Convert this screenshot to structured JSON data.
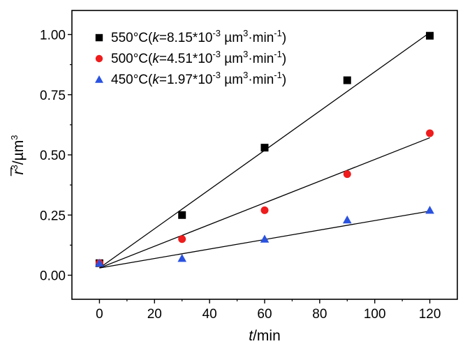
{
  "chart_data": {
    "type": "scatter",
    "xlabel_var": "t",
    "xlabel_unit": "/min",
    "ylabel_var": "r̅",
    "ylabel_exp": "3",
    "ylabel_unit": "/µm",
    "ylabel_unit_exp": "3",
    "xlim": [
      -10,
      130
    ],
    "ylim": [
      -0.1,
      1.1
    ],
    "xticks": [
      0,
      20,
      40,
      60,
      80,
      100,
      120
    ],
    "xtick_labels": [
      "0",
      "20",
      "40",
      "60",
      "80",
      "100",
      "120"
    ],
    "yticks": [
      0.0,
      0.25,
      0.5,
      0.75,
      1.0
    ],
    "ytick_labels": [
      "0.00",
      "0.25",
      "0.50",
      "0.75",
      "1.00"
    ],
    "legend_position": "top-left",
    "grid": false,
    "series": [
      {
        "key": "s550",
        "legend_temp": "550°C(",
        "legend_k": "k",
        "legend_rest": "=8.15*10",
        "legend_exp": "-3",
        "legend_unit": " µm",
        "legend_unit_exp": "3",
        "legend_min": "·min",
        "legend_min_exp": "-1",
        "legend_close": ")",
        "marker": "square",
        "color": "#000000",
        "x": [
          0,
          30,
          60,
          90,
          120
        ],
        "y": [
          0.05,
          0.25,
          0.53,
          0.81,
          0.995
        ],
        "fit": {
          "intercept": 0.03,
          "slope": 0.00815
        }
      },
      {
        "key": "s500",
        "legend_temp": "500°C(",
        "legend_k": "k",
        "legend_rest": "=4.51*10",
        "legend_exp": "-3",
        "legend_unit": " µm",
        "legend_unit_exp": "3",
        "legend_min": "·min",
        "legend_min_exp": "-1",
        "legend_close": ")",
        "marker": "circle",
        "color": "#ee1c1c",
        "x": [
          0,
          30,
          60,
          90,
          120
        ],
        "y": [
          0.05,
          0.15,
          0.27,
          0.42,
          0.59
        ],
        "fit": {
          "intercept": 0.03,
          "slope": 0.00451
        }
      },
      {
        "key": "s450",
        "legend_temp": "450°C(",
        "legend_k": "k",
        "legend_rest": "=1.97*10",
        "legend_exp": "-3",
        "legend_unit": " µm",
        "legend_unit_exp": "3",
        "legend_min": "·min",
        "legend_min_exp": "-1",
        "legend_close": ")",
        "marker": "triangle",
        "color": "#2a52e0",
        "x": [
          0,
          30,
          60,
          90,
          120
        ],
        "y": [
          0.05,
          0.07,
          0.15,
          0.23,
          0.27
        ],
        "fit": {
          "intercept": 0.03,
          "slope": 0.00197
        }
      }
    ]
  }
}
